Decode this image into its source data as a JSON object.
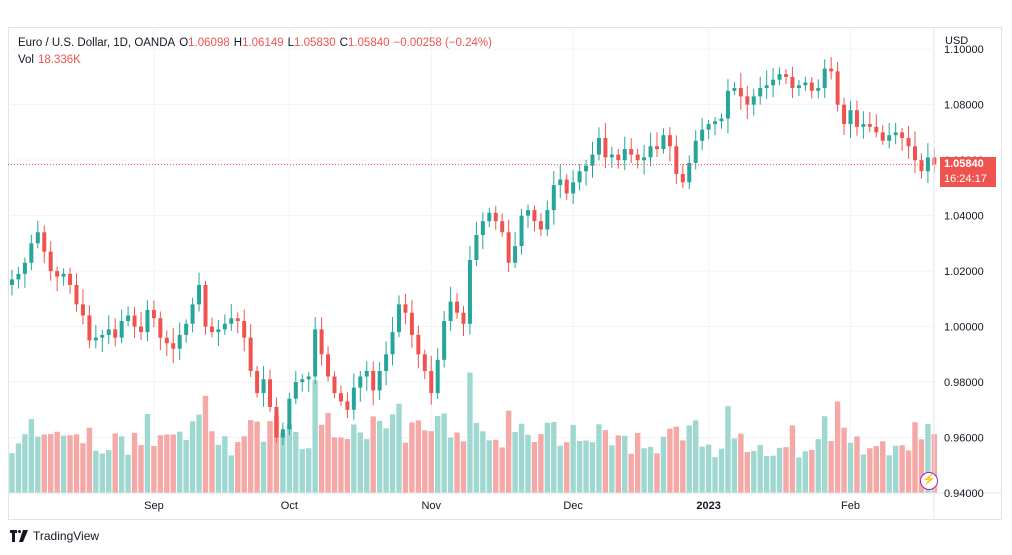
{
  "legend": {
    "title": "Euro / U.S. Dollar, 1D, OANDA",
    "o_label": "O",
    "o_value": "1.06098",
    "h_label": "H",
    "h_value": "1.06149",
    "l_label": "L",
    "l_value": "1.05830",
    "c_label": "C",
    "c_value": "1.05840",
    "change": "−0.00258 (−0.24%)",
    "vol_label": "Vol",
    "vol_value": "18.336K"
  },
  "price_axis": {
    "unit": "USD"
  },
  "last_price": {
    "value": "1.05840",
    "countdown": "16:24:17"
  },
  "footer": {
    "brand": "TradingView"
  },
  "colors": {
    "up": "#26a69a",
    "down": "#ef5350",
    "vol_up": "#9fd8d1",
    "vol_down": "#f5a9a7"
  },
  "chart_data": {
    "type": "candlestick",
    "symbol": "EURUSD",
    "interval": "1D",
    "ylim": [
      0.94,
      1.108
    ],
    "y_ticks": [
      "1.10000",
      "1.08000",
      "1.06000",
      "1.04000",
      "1.02000",
      "1.00000",
      "0.98000",
      "0.96000",
      "0.94000"
    ],
    "x_ticks": [
      {
        "index": 22,
        "label": "Sep",
        "bold": false
      },
      {
        "index": 43,
        "label": "Oct",
        "bold": false
      },
      {
        "index": 65,
        "label": "Nov",
        "bold": false
      },
      {
        "index": 87,
        "label": "Dec",
        "bold": false
      },
      {
        "index": 108,
        "label": "2023",
        "bold": true
      },
      {
        "index": 130,
        "label": "Feb",
        "bold": false
      }
    ],
    "closes": [
      1.017,
      1.019,
      1.023,
      1.03,
      1.034,
      1.027,
      1.02,
      1.018,
      1.019,
      1.015,
      1.008,
      1.004,
      0.995,
      0.996,
      0.997,
      0.999,
      0.996,
      1.002,
      1.004,
      1.0,
      0.998,
      1.006,
      1.003,
      0.996,
      0.994,
      0.992,
      0.997,
      1.001,
      1.008,
      1.015,
      1.0,
      0.998,
      0.999,
      1.001,
      1.003,
      1.002,
      0.996,
      0.984,
      0.976,
      0.981,
      0.971,
      0.96,
      0.963,
      0.974,
      0.98,
      0.981,
      0.982,
      0.999,
      0.99,
      0.982,
      0.976,
      0.973,
      0.97,
      0.978,
      0.982,
      0.984,
      0.977,
      0.984,
      0.99,
      0.998,
      1.008,
      1.005,
      0.997,
      0.99,
      0.984,
      0.976,
      0.988,
      1.002,
      1.009,
      1.005,
      1.001,
      1.024,
      1.033,
      1.038,
      1.041,
      1.038,
      1.034,
      1.023,
      1.029,
      1.04,
      1.042,
      1.038,
      1.035,
      1.042,
      1.051,
      1.053,
      1.048,
      1.052,
      1.056,
      1.058,
      1.062,
      1.068,
      1.061,
      1.062,
      1.06,
      1.064,
      1.062,
      1.06,
      1.061,
      1.065,
      1.064,
      1.069,
      1.065,
      1.055,
      1.052,
      1.059,
      1.067,
      1.071,
      1.073,
      1.074,
      1.075,
      1.085,
      1.086,
      1.083,
      1.08,
      1.083,
      1.086,
      1.087,
      1.089,
      1.091,
      1.09,
      1.086,
      1.087,
      1.088,
      1.085,
      1.086,
      1.093,
      1.092,
      1.08,
      1.073,
      1.078,
      1.072,
      1.073,
      1.072,
      1.07,
      1.067,
      1.069,
      1.07,
      1.068,
      1.065,
      1.06,
      1.056,
      1.061,
      1.0584
    ],
    "volume_note": "volume bars drawn beneath price, colored by candle direction",
    "last_volume": "18.336K"
  }
}
